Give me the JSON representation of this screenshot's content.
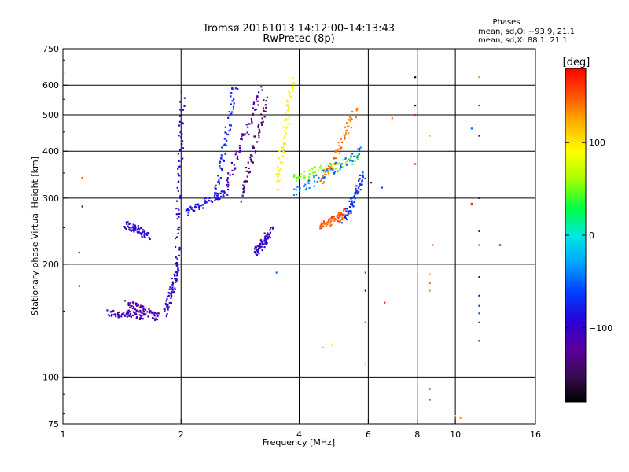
{
  "header": {
    "title_line1": "Tromsø 20161013 14:12:00–14:13:43",
    "title_line2": "RwPretec (8p)"
  },
  "stats": {
    "heading": "Phases",
    "line_o": "mean, sd,O: −93.9, 21.1",
    "line_x": "mean, sd,X:  88.1, 21.1"
  },
  "colorbar": {
    "unit": "[deg]",
    "range": [
      -180,
      180
    ],
    "ticks": [
      {
        "value": 100,
        "label": "100"
      },
      {
        "value": 0,
        "label": "0"
      },
      {
        "value": -100,
        "label": "−100"
      }
    ]
  },
  "chart_data": {
    "type": "scatter",
    "title": "Tromsø 20161013 14:12:00–14:13:43",
    "subtitle": "RwPretec (8p)",
    "xlabel": "Frequency [MHz]",
    "ylabel": "Stationary phase Virtual Height [km]",
    "x_scale": "log",
    "y_scale": "log",
    "xlim": [
      1,
      16
    ],
    "ylim": [
      75,
      750
    ],
    "grid": true,
    "x_ticks": [
      {
        "value": 1,
        "label": "1"
      },
      {
        "value": 2,
        "label": "2"
      },
      {
        "value": 4,
        "label": "4"
      },
      {
        "value": 6,
        "label": "6"
      },
      {
        "value": 8,
        "label": "8"
      },
      {
        "value": 10,
        "label": "10"
      },
      {
        "value": 16,
        "label": "16"
      }
    ],
    "x_gridlines": [
      2,
      4,
      6,
      8,
      10
    ],
    "y_ticks": [
      {
        "value": 75,
        "label": "75"
      },
      {
        "value": 100,
        "label": "100"
      },
      {
        "value": 200,
        "label": "200"
      },
      {
        "value": 300,
        "label": "300"
      },
      {
        "value": 400,
        "label": "400"
      },
      {
        "value": 500,
        "label": "500"
      },
      {
        "value": 600,
        "label": "600"
      },
      {
        "value": 750,
        "label": "750"
      }
    ],
    "y_gridlines": [
      100,
      200,
      300,
      400,
      500,
      600
    ],
    "color_variable": "Phase [deg]",
    "traces": [
      {
        "x_range": [
          1.3,
          1.62
        ],
        "y_range": [
          148,
          146
        ],
        "phase": -110
      },
      {
        "x_range": [
          1.45,
          1.75
        ],
        "y_range": [
          158,
          145
        ],
        "phase": -120
      },
      {
        "x_range": [
          1.45,
          1.65
        ],
        "y_range": [
          255,
          238
        ],
        "phase": -95
      },
      {
        "x_range": [
          1.82,
          1.97
        ],
        "y_range": [
          148,
          198
        ],
        "phase": -100
      },
      {
        "x_range": [
          1.95,
          2.02
        ],
        "y_range": [
          200,
          560
        ],
        "phase": -95
      },
      {
        "x_range": [
          2.05,
          2.6
        ],
        "y_range": [
          275,
          310
        ],
        "phase": -85
      },
      {
        "x_range": [
          2.45,
          2.75
        ],
        "y_range": [
          300,
          600
        ],
        "phase": -75
      },
      {
        "x_range": [
          2.6,
          3.2
        ],
        "y_range": [
          320,
          580
        ],
        "phase": -115
      },
      {
        "x_range": [
          2.85,
          3.3
        ],
        "y_range": [
          300,
          550
        ],
        "phase": -140
      },
      {
        "x_range": [
          3.1,
          3.4
        ],
        "y_range": [
          215,
          245
        ],
        "phase": -100
      },
      {
        "x_range": [
          3.5,
          3.85
        ],
        "y_range": [
          320,
          620
        ],
        "phase": 95
      },
      {
        "x_range": [
          3.85,
          5.6
        ],
        "y_range": [
          340,
          380
        ],
        "phase": 55
      },
      {
        "x_range": [
          3.9,
          5.8
        ],
        "y_range": [
          310,
          400
        ],
        "phase": -45
      },
      {
        "x_range": [
          4.6,
          5.6
        ],
        "y_range": [
          330,
          520
        ],
        "phase": 140
      },
      {
        "x_range": [
          4.5,
          5.3
        ],
        "y_range": [
          250,
          275
        ],
        "phase": 150
      },
      {
        "x_range": [
          5.2,
          5.85
        ],
        "y_range": [
          260,
          350
        ],
        "phase": -70
      }
    ],
    "scatter_points": [
      {
        "x": 1.12,
        "y": 340,
        "phase": 150
      },
      {
        "x": 1.12,
        "y": 285,
        "phase": -150
      },
      {
        "x": 1.1,
        "y": 215,
        "phase": -80
      },
      {
        "x": 1.1,
        "y": 175,
        "phase": -80
      },
      {
        "x": 3.5,
        "y": 190,
        "phase": -50
      },
      {
        "x": 4.6,
        "y": 120,
        "phase": 60
      },
      {
        "x": 4.85,
        "y": 122,
        "phase": 100
      },
      {
        "x": 5.9,
        "y": 108,
        "phase": 100
      },
      {
        "x": 5.9,
        "y": 140,
        "phase": -40
      },
      {
        "x": 5.9,
        "y": 170,
        "phase": -160
      },
      {
        "x": 5.9,
        "y": 190,
        "phase": 175
      },
      {
        "x": 6.6,
        "y": 158,
        "phase": 170
      },
      {
        "x": 7.9,
        "y": 630,
        "phase": -170
      },
      {
        "x": 7.9,
        "y": 530,
        "phase": -170
      },
      {
        "x": 7.9,
        "y": 500,
        "phase": 170
      },
      {
        "x": 7.9,
        "y": 370,
        "phase": 175
      },
      {
        "x": 8.6,
        "y": 440,
        "phase": 120
      },
      {
        "x": 8.75,
        "y": 225,
        "phase": 150
      },
      {
        "x": 8.6,
        "y": 188,
        "phase": 130
      },
      {
        "x": 8.6,
        "y": 178,
        "phase": 150
      },
      {
        "x": 8.6,
        "y": 170,
        "phase": 140
      },
      {
        "x": 8.6,
        "y": 93,
        "phase": -60
      },
      {
        "x": 8.6,
        "y": 87,
        "phase": -120
      },
      {
        "x": 10.0,
        "y": 79,
        "phase": 100
      },
      {
        "x": 10.3,
        "y": 78,
        "phase": 130
      },
      {
        "x": 11.0,
        "y": 460,
        "phase": -50
      },
      {
        "x": 11.0,
        "y": 290,
        "phase": 170
      },
      {
        "x": 11.5,
        "y": 630,
        "phase": 130
      },
      {
        "x": 11.5,
        "y": 530,
        "phase": -60
      },
      {
        "x": 11.5,
        "y": 440,
        "phase": -100
      },
      {
        "x": 11.5,
        "y": 300,
        "phase": -110
      },
      {
        "x": 11.5,
        "y": 245,
        "phase": -130
      },
      {
        "x": 11.5,
        "y": 225,
        "phase": 160
      },
      {
        "x": 11.5,
        "y": 185,
        "phase": -95
      },
      {
        "x": 11.5,
        "y": 165,
        "phase": -95
      },
      {
        "x": 11.5,
        "y": 155,
        "phase": -70
      },
      {
        "x": 11.5,
        "y": 148,
        "phase": -60
      },
      {
        "x": 11.5,
        "y": 140,
        "phase": -60
      },
      {
        "x": 11.5,
        "y": 125,
        "phase": -100
      },
      {
        "x": 13.0,
        "y": 225,
        "phase": -130
      },
      {
        "x": 6.9,
        "y": 490,
        "phase": 150
      },
      {
        "x": 6.5,
        "y": 320,
        "phase": -60
      },
      {
        "x": 6.1,
        "y": 330,
        "phase": -140
      }
    ]
  }
}
